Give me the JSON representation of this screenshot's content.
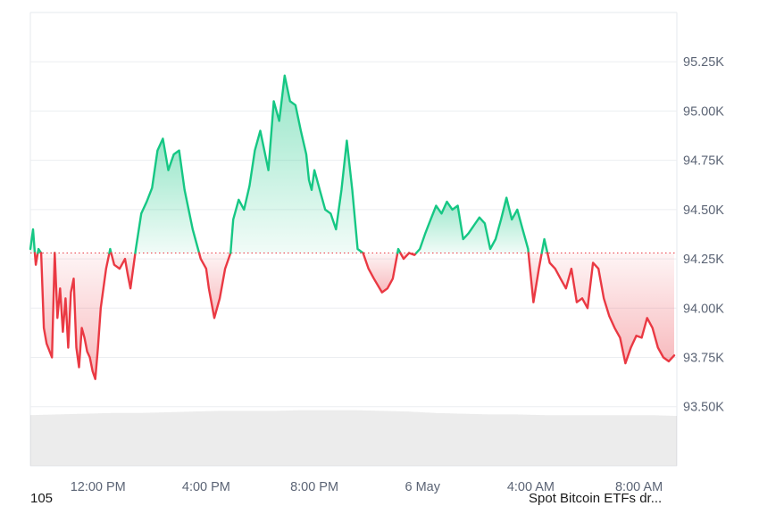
{
  "chart_data": {
    "type": "area",
    "title": "",
    "xlabel": "",
    "ylabel": "",
    "ylim": [
      93200,
      95500
    ],
    "reference_line": 94280,
    "colors": {
      "up": "#16c784",
      "down": "#ea3943",
      "reference": "#ea3943",
      "volume": "#d9d9d9"
    },
    "y_ticks": [
      {
        "value": 93500,
        "label": "93.50K"
      },
      {
        "value": 93750,
        "label": "93.75K"
      },
      {
        "value": 94000,
        "label": "94.00K"
      },
      {
        "value": 94250,
        "label": "94.25K"
      },
      {
        "value": 94500,
        "label": "94.50K"
      },
      {
        "value": 94750,
        "label": "94.75K"
      },
      {
        "value": 95000,
        "label": "95.00K"
      },
      {
        "value": 95250,
        "label": "95.25K"
      }
    ],
    "x_ticks": [
      {
        "value": 12.0,
        "label": "12:00 PM"
      },
      {
        "value": 16.0,
        "label": "4:00 PM"
      },
      {
        "value": 20.0,
        "label": "8:00 PM"
      },
      {
        "value": 24.0,
        "label": "6 May"
      },
      {
        "value": 28.0,
        "label": "4:00 AM"
      },
      {
        "value": 32.0,
        "label": "8:00 AM"
      }
    ],
    "xlim": [
      9.5,
      33.4
    ],
    "series": [
      {
        "x": [
          9.5,
          9.6,
          9.7,
          9.8,
          9.9,
          10.0,
          10.1,
          10.3,
          10.4,
          10.5,
          10.6,
          10.7,
          10.8,
          10.9,
          11.0,
          11.1,
          11.2,
          11.3,
          11.4,
          11.5,
          11.6,
          11.7,
          11.8,
          11.9,
          12.0,
          12.1,
          12.2,
          12.3,
          12.45,
          12.6,
          12.8,
          13.0,
          13.1,
          13.2,
          13.4,
          13.6,
          13.8,
          14.0,
          14.2,
          14.4,
          14.6,
          14.8,
          15.0,
          15.2,
          15.5,
          15.8,
          16.0,
          16.1,
          16.3,
          16.5,
          16.7,
          16.9,
          17.0,
          17.2,
          17.4,
          17.6,
          17.8,
          18.0,
          18.3,
          18.5,
          18.7,
          18.9,
          19.1,
          19.3,
          19.5,
          19.7,
          19.8,
          19.9,
          20.0,
          20.2,
          20.4,
          20.6,
          20.8,
          21.0,
          21.2,
          21.4,
          21.6,
          21.8,
          22.0,
          22.2,
          22.5,
          22.7,
          22.9,
          23.1,
          23.3,
          23.5,
          23.7,
          23.9,
          24.1,
          24.3,
          24.5,
          24.7,
          24.9,
          25.1,
          25.3,
          25.5,
          25.7,
          25.9,
          26.1,
          26.3,
          26.5,
          26.7,
          26.9,
          27.1,
          27.3,
          27.5,
          27.7,
          27.9,
          28.1,
          28.3,
          28.5,
          28.7,
          28.9,
          29.1,
          29.3,
          29.5,
          29.7,
          29.9,
          30.1,
          30.3,
          30.5,
          30.7,
          30.9,
          31.1,
          31.3,
          31.5,
          31.7,
          31.9,
          32.1,
          32.3,
          32.5,
          32.7,
          32.9,
          33.1,
          33.3
        ],
        "y": [
          94300,
          94400,
          94220,
          94300,
          94280,
          93900,
          93820,
          93750,
          94280,
          93950,
          94100,
          93880,
          94050,
          93800,
          94080,
          94150,
          93800,
          93700,
          93900,
          93850,
          93780,
          93750,
          93680,
          93640,
          93800,
          94000,
          94100,
          94200,
          94300,
          94220,
          94200,
          94250,
          94170,
          94100,
          94300,
          94480,
          94540,
          94610,
          94800,
          94860,
          94700,
          94780,
          94800,
          94600,
          94400,
          94250,
          94200,
          94100,
          93950,
          94050,
          94200,
          94280,
          94450,
          94550,
          94500,
          94620,
          94800,
          94900,
          94700,
          95050,
          94950,
          95180,
          95050,
          95030,
          94900,
          94780,
          94650,
          94600,
          94700,
          94600,
          94500,
          94480,
          94400,
          94600,
          94850,
          94600,
          94300,
          94280,
          94200,
          94150,
          94080,
          94100,
          94150,
          94300,
          94250,
          94280,
          94270,
          94300,
          94380,
          94450,
          94520,
          94480,
          94540,
          94500,
          94520,
          94350,
          94380,
          94420,
          94460,
          94430,
          94300,
          94350,
          94450,
          94560,
          94450,
          94500,
          94400,
          94300,
          94030,
          94200,
          94350,
          94230,
          94200,
          94150,
          94100,
          94200,
          94030,
          94050,
          94000,
          94230,
          94200,
          94050,
          93960,
          93900,
          93850,
          93720,
          93800,
          93860,
          93850,
          93950,
          93900,
          93800,
          93750,
          93730,
          93760
        ]
      }
    ],
    "volume": {
      "x": [
        9.5,
        10.5,
        11.5,
        12.5,
        13.5,
        14.5,
        15.5,
        16.5,
        17.5,
        18.5,
        19.5,
        20.5,
        21.5,
        22.5,
        23.5,
        24.5,
        25.5,
        26.5,
        27.5,
        28.5,
        29.5,
        30.5,
        31.5,
        32.5,
        33.3
      ],
      "y": [
        0.71,
        0.72,
        0.73,
        0.74,
        0.74,
        0.75,
        0.76,
        0.77,
        0.77,
        0.77,
        0.78,
        0.78,
        0.78,
        0.77,
        0.76,
        0.74,
        0.73,
        0.72,
        0.72,
        0.71,
        0.71,
        0.71,
        0.71,
        0.71,
        0.7
      ]
    }
  },
  "footer": {
    "left_text": "105",
    "right_text": "Spot Bitcoin ETFs dr..."
  }
}
